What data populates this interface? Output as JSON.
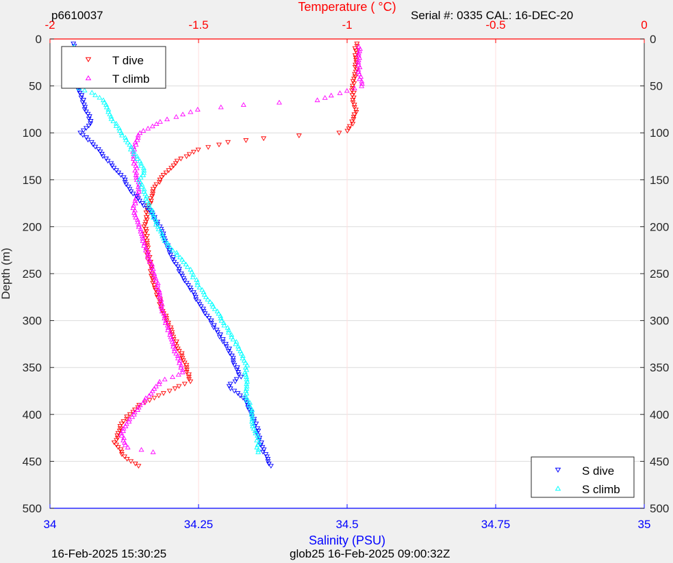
{
  "header": {
    "profile_id": "p6610037",
    "serial": "Serial #: 0335  CAL: 16-DEC-20"
  },
  "footer": {
    "left_timestamp": "16-Feb-2025 15:30:25",
    "right_timestamp": "glob25 16-Feb-2025 09:00:32Z"
  },
  "chart_data": {
    "type": "scatter",
    "ylabel": "Depth (m)",
    "ylim": [
      0,
      500
    ],
    "y_reversed": true,
    "yticks": [
      0,
      50,
      100,
      150,
      200,
      250,
      300,
      350,
      400,
      450,
      500
    ],
    "x_top": {
      "label": "Temperature (    °C)",
      "lim": [
        -2,
        0
      ],
      "ticks": [
        -2,
        -1.5,
        -1,
        -0.5,
        0
      ],
      "tick_labels": [
        "-2",
        "-1.5",
        "-1",
        "-0.5",
        "0"
      ],
      "color": "#ff0000"
    },
    "x_bottom": {
      "label": "Salinity (PSU)",
      "lim": [
        34,
        35
      ],
      "ticks": [
        34,
        34.25,
        34.5,
        34.75,
        35
      ],
      "tick_labels": [
        "34",
        "34.25",
        "34.5",
        "34.75",
        "35"
      ],
      "color": "#0000ff"
    },
    "grid": true,
    "legends": [
      {
        "position": "top-left",
        "entries": [
          "T dive",
          "T climb"
        ]
      },
      {
        "position": "bottom-right",
        "entries": [
          "S dive",
          "S climb"
        ]
      }
    ],
    "series": [
      {
        "name": "T dive",
        "axis": "temperature",
        "marker": "triangle-down",
        "color": "#ff0000",
        "points": [
          [
            -0.97,
            5
          ],
          [
            -0.97,
            20
          ],
          [
            -0.97,
            35
          ],
          [
            -0.98,
            50
          ],
          [
            -0.98,
            65
          ],
          [
            -0.97,
            78
          ],
          [
            -0.98,
            88
          ],
          [
            -1.0,
            98
          ],
          [
            -1.03,
            100
          ],
          [
            -1.16,
            103
          ],
          [
            -1.28,
            106
          ],
          [
            -1.4,
            110
          ],
          [
            -1.5,
            118
          ],
          [
            -1.57,
            130
          ],
          [
            -1.62,
            145
          ],
          [
            -1.65,
            160
          ],
          [
            -1.67,
            180
          ],
          [
            -1.68,
            200
          ],
          [
            -1.67,
            230
          ],
          [
            -1.65,
            260
          ],
          [
            -1.62,
            290
          ],
          [
            -1.58,
            320
          ],
          [
            -1.54,
            350
          ],
          [
            -1.53,
            365
          ],
          [
            -1.6,
            375
          ],
          [
            -1.7,
            390
          ],
          [
            -1.76,
            410
          ],
          [
            -1.78,
            430
          ],
          [
            -1.75,
            445
          ],
          [
            -1.7,
            455
          ]
        ]
      },
      {
        "name": "T climb",
        "axis": "temperature",
        "marker": "triangle-up",
        "color": "#ff00ff",
        "points": [
          [
            -1.65,
            440
          ],
          [
            -1.74,
            435
          ],
          [
            -1.76,
            420
          ],
          [
            -1.72,
            400
          ],
          [
            -1.68,
            385
          ],
          [
            -1.63,
            365
          ],
          [
            -1.55,
            355
          ],
          [
            -1.57,
            340
          ],
          [
            -1.6,
            310
          ],
          [
            -1.62,
            290
          ],
          [
            -1.64,
            260
          ],
          [
            -1.66,
            240
          ],
          [
            -1.68,
            220
          ],
          [
            -1.7,
            200
          ],
          [
            -1.72,
            180
          ],
          [
            -1.7,
            160
          ],
          [
            -1.71,
            140
          ],
          [
            -1.72,
            120
          ],
          [
            -1.7,
            100
          ],
          [
            -1.63,
            88
          ],
          [
            -1.5,
            75
          ],
          [
            -1.35,
            70
          ],
          [
            -1.1,
            65
          ],
          [
            -1.05,
            60
          ],
          [
            -0.95,
            50
          ],
          [
            -0.96,
            35
          ],
          [
            -0.96,
            20
          ],
          [
            -0.96,
            8
          ]
        ]
      },
      {
        "name": "S dive",
        "axis": "salinity",
        "marker": "triangle-down",
        "color": "#0000ff",
        "points": [
          [
            34.04,
            5
          ],
          [
            34.04,
            30
          ],
          [
            34.05,
            55
          ],
          [
            34.06,
            75
          ],
          [
            34.07,
            90
          ],
          [
            34.05,
            100
          ],
          [
            34.07,
            110
          ],
          [
            34.09,
            125
          ],
          [
            34.12,
            145
          ],
          [
            34.14,
            165
          ],
          [
            34.17,
            185
          ],
          [
            34.19,
            205
          ],
          [
            34.2,
            225
          ],
          [
            34.22,
            250
          ],
          [
            34.24,
            270
          ],
          [
            34.26,
            290
          ],
          [
            34.28,
            310
          ],
          [
            34.3,
            330
          ],
          [
            34.31,
            345
          ],
          [
            34.32,
            360
          ],
          [
            34.3,
            370
          ],
          [
            34.33,
            385
          ],
          [
            34.34,
            400
          ],
          [
            34.35,
            420
          ],
          [
            34.36,
            440
          ],
          [
            34.37,
            455
          ]
        ]
      },
      {
        "name": "S climb",
        "axis": "salinity",
        "marker": "triangle-up",
        "color": "#00ffff",
        "points": [
          [
            34.35,
            440
          ],
          [
            34.35,
            425
          ],
          [
            34.34,
            410
          ],
          [
            34.34,
            395
          ],
          [
            34.33,
            380
          ],
          [
            34.33,
            365
          ],
          [
            34.33,
            345
          ],
          [
            34.31,
            320
          ],
          [
            34.29,
            300
          ],
          [
            34.27,
            280
          ],
          [
            34.25,
            262
          ],
          [
            34.23,
            240
          ],
          [
            34.2,
            220
          ],
          [
            34.18,
            200
          ],
          [
            34.17,
            180
          ],
          [
            34.16,
            165
          ],
          [
            34.15,
            150
          ],
          [
            34.16,
            140
          ],
          [
            34.14,
            120
          ],
          [
            34.12,
            100
          ],
          [
            34.1,
            80
          ],
          [
            34.09,
            65
          ],
          [
            34.07,
            57
          ],
          [
            34.04,
            50
          ],
          [
            34.04,
            30
          ],
          [
            34.04,
            8
          ]
        ]
      }
    ]
  }
}
